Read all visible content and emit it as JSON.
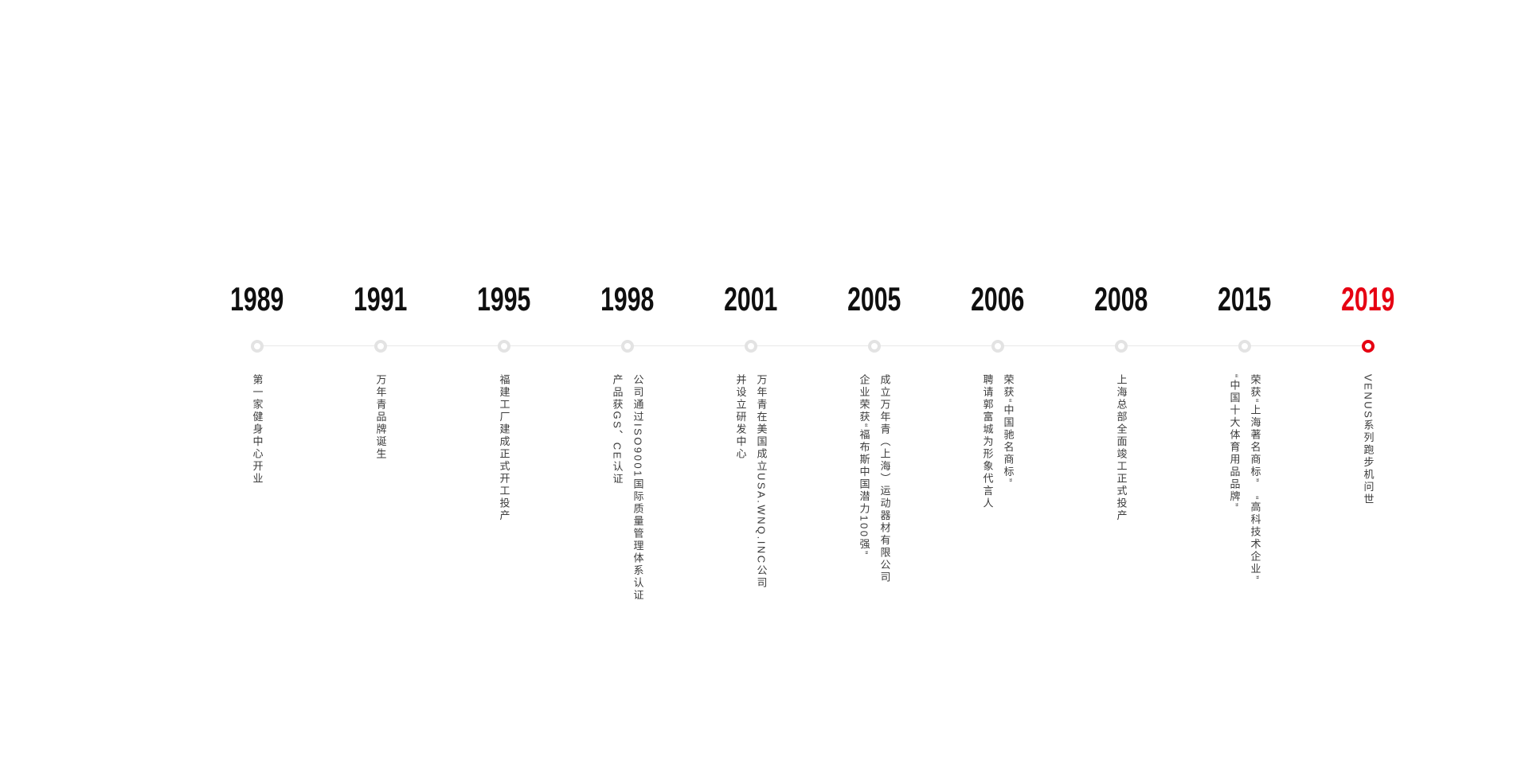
{
  "page": {
    "background_color": "#ffffff"
  },
  "timeline": {
    "accent_color": "#e60012",
    "year_color": "#0f0f0f",
    "text_color": "#3c3c3c",
    "line_color": "#e9e9e9",
    "dot_color": "#e3e3e3",
    "milestones": [
      {
        "year": "1989",
        "highlight": false,
        "lines": [
          "第一家健身中心开业"
        ]
      },
      {
        "year": "1991",
        "highlight": false,
        "lines": [
          "万年青品牌诞生"
        ]
      },
      {
        "year": "1995",
        "highlight": false,
        "lines": [
          "福建工厂建成正式开工投产"
        ]
      },
      {
        "year": "1998",
        "highlight": false,
        "lines": [
          "公司通过ISO9001国际质量管理体系认证",
          "产品获GS、CE认证"
        ]
      },
      {
        "year": "2001",
        "highlight": false,
        "lines": [
          "万年青在美国成立USA.WNQ.INC公司",
          "并设立研发中心"
        ]
      },
      {
        "year": "2005",
        "highlight": false,
        "lines": [
          "成立万年青（上海）运动器材有限公司",
          "企业荣获“福布斯中国潜力100强”"
        ]
      },
      {
        "year": "2006",
        "highlight": false,
        "lines": [
          "荣获“中国驰名商标”",
          "聘请郭富城为形象代言人"
        ]
      },
      {
        "year": "2008",
        "highlight": false,
        "lines": [
          "上海总部全面竣工正式投产"
        ]
      },
      {
        "year": "2015",
        "highlight": false,
        "lines": [
          "荣获“上海著名商标”　“高科技术企业”",
          "“中国十大体育用品品牌”"
        ]
      },
      {
        "year": "2019",
        "highlight": true,
        "lines": [
          "VENUS系列跑步机问世"
        ]
      }
    ]
  }
}
